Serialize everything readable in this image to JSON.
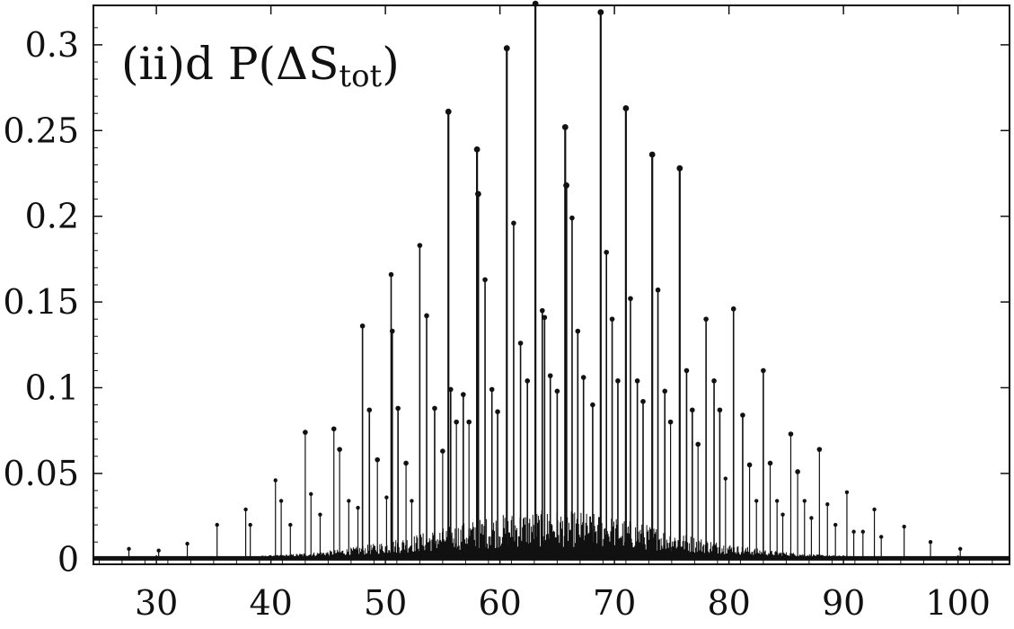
{
  "chart_data": {
    "type": "line",
    "title": "(ii)d  P(ΔS",
    "title_subscript": "tot",
    "title_close": ")",
    "xlabel": "",
    "ylabel": "",
    "xlim": [
      24.5,
      104.5
    ],
    "ylim": [
      -0.003,
      0.323
    ],
    "grid": false,
    "legend": "none",
    "line_color": "#111111",
    "x_ticks": [
      30,
      40,
      50,
      60,
      70,
      80,
      90,
      100
    ],
    "x_tick_labels": [
      "30",
      "40",
      "50",
      "60",
      "70",
      "80",
      "90",
      "100"
    ],
    "y_ticks": [
      0,
      0.05,
      0.1,
      0.15,
      0.2,
      0.25,
      0.3
    ],
    "y_tick_labels": [
      "0",
      "0.05",
      "0.1",
      "0.15",
      "0.2",
      "0.25",
      "0.3"
    ],
    "peaks": [
      {
        "x": 27.6,
        "y": 0.006
      },
      {
        "x": 30.2,
        "y": 0.005
      },
      {
        "x": 32.7,
        "y": 0.009
      },
      {
        "x": 35.3,
        "y": 0.02
      },
      {
        "x": 37.8,
        "y": 0.029
      },
      {
        "x": 38.2,
        "y": 0.02
      },
      {
        "x": 40.4,
        "y": 0.046
      },
      {
        "x": 40.9,
        "y": 0.034
      },
      {
        "x": 41.7,
        "y": 0.02
      },
      {
        "x": 43.0,
        "y": 0.074
      },
      {
        "x": 43.5,
        "y": 0.038
      },
      {
        "x": 44.3,
        "y": 0.026
      },
      {
        "x": 45.5,
        "y": 0.076
      },
      {
        "x": 46.0,
        "y": 0.064
      },
      {
        "x": 46.8,
        "y": 0.034
      },
      {
        "x": 47.6,
        "y": 0.03
      },
      {
        "x": 48.0,
        "y": 0.136
      },
      {
        "x": 48.6,
        "y": 0.087
      },
      {
        "x": 49.3,
        "y": 0.058
      },
      {
        "x": 50.1,
        "y": 0.036
      },
      {
        "x": 50.5,
        "y": 0.166
      },
      {
        "x": 50.6,
        "y": 0.133
      },
      {
        "x": 51.1,
        "y": 0.088
      },
      {
        "x": 51.8,
        "y": 0.056
      },
      {
        "x": 52.3,
        "y": 0.034
      },
      {
        "x": 53.0,
        "y": 0.183
      },
      {
        "x": 53.6,
        "y": 0.142
      },
      {
        "x": 54.3,
        "y": 0.088
      },
      {
        "x": 55.0,
        "y": 0.063
      },
      {
        "x": 55.5,
        "y": 0.261
      },
      {
        "x": 55.7,
        "y": 0.099
      },
      {
        "x": 56.2,
        "y": 0.08
      },
      {
        "x": 56.8,
        "y": 0.096
      },
      {
        "x": 57.3,
        "y": 0.08
      },
      {
        "x": 58.0,
        "y": 0.239
      },
      {
        "x": 58.1,
        "y": 0.213
      },
      {
        "x": 58.7,
        "y": 0.163
      },
      {
        "x": 59.3,
        "y": 0.099
      },
      {
        "x": 59.8,
        "y": 0.086
      },
      {
        "x": 60.6,
        "y": 0.298
      },
      {
        "x": 61.2,
        "y": 0.196
      },
      {
        "x": 61.8,
        "y": 0.126
      },
      {
        "x": 62.4,
        "y": 0.104
      },
      {
        "x": 63.1,
        "y": 0.324
      },
      {
        "x": 63.7,
        "y": 0.145
      },
      {
        "x": 63.9,
        "y": 0.141
      },
      {
        "x": 64.4,
        "y": 0.107
      },
      {
        "x": 65.0,
        "y": 0.098
      },
      {
        "x": 65.7,
        "y": 0.252
      },
      {
        "x": 65.8,
        "y": 0.218
      },
      {
        "x": 66.3,
        "y": 0.199
      },
      {
        "x": 66.8,
        "y": 0.133
      },
      {
        "x": 67.3,
        "y": 0.106
      },
      {
        "x": 68.1,
        "y": 0.09
      },
      {
        "x": 68.8,
        "y": 0.319
      },
      {
        "x": 69.3,
        "y": 0.179
      },
      {
        "x": 69.8,
        "y": 0.14
      },
      {
        "x": 70.3,
        "y": 0.104
      },
      {
        "x": 71.0,
        "y": 0.263
      },
      {
        "x": 71.4,
        "y": 0.152
      },
      {
        "x": 72.0,
        "y": 0.104
      },
      {
        "x": 72.5,
        "y": 0.092
      },
      {
        "x": 73.3,
        "y": 0.236
      },
      {
        "x": 73.8,
        "y": 0.157
      },
      {
        "x": 74.4,
        "y": 0.098
      },
      {
        "x": 74.9,
        "y": 0.08
      },
      {
        "x": 75.7,
        "y": 0.228
      },
      {
        "x": 76.3,
        "y": 0.11
      },
      {
        "x": 76.8,
        "y": 0.087
      },
      {
        "x": 77.3,
        "y": 0.067
      },
      {
        "x": 78.0,
        "y": 0.14
      },
      {
        "x": 78.7,
        "y": 0.104
      },
      {
        "x": 79.2,
        "y": 0.087
      },
      {
        "x": 79.7,
        "y": 0.047
      },
      {
        "x": 80.4,
        "y": 0.146
      },
      {
        "x": 81.2,
        "y": 0.084
      },
      {
        "x": 81.8,
        "y": 0.055
      },
      {
        "x": 82.4,
        "y": 0.034
      },
      {
        "x": 83.0,
        "y": 0.11
      },
      {
        "x": 83.6,
        "y": 0.056
      },
      {
        "x": 84.2,
        "y": 0.034
      },
      {
        "x": 84.7,
        "y": 0.026
      },
      {
        "x": 85.4,
        "y": 0.073
      },
      {
        "x": 86.0,
        "y": 0.051
      },
      {
        "x": 86.6,
        "y": 0.034
      },
      {
        "x": 87.2,
        "y": 0.024
      },
      {
        "x": 87.9,
        "y": 0.064
      },
      {
        "x": 88.6,
        "y": 0.032
      },
      {
        "x": 89.3,
        "y": 0.02
      },
      {
        "x": 90.3,
        "y": 0.039
      },
      {
        "x": 90.9,
        "y": 0.016
      },
      {
        "x": 91.7,
        "y": 0.016
      },
      {
        "x": 92.7,
        "y": 0.029
      },
      {
        "x": 93.3,
        "y": 0.013
      },
      {
        "x": 95.3,
        "y": 0.019
      },
      {
        "x": 97.6,
        "y": 0.01
      },
      {
        "x": 100.2,
        "y": 0.006
      }
    ]
  }
}
